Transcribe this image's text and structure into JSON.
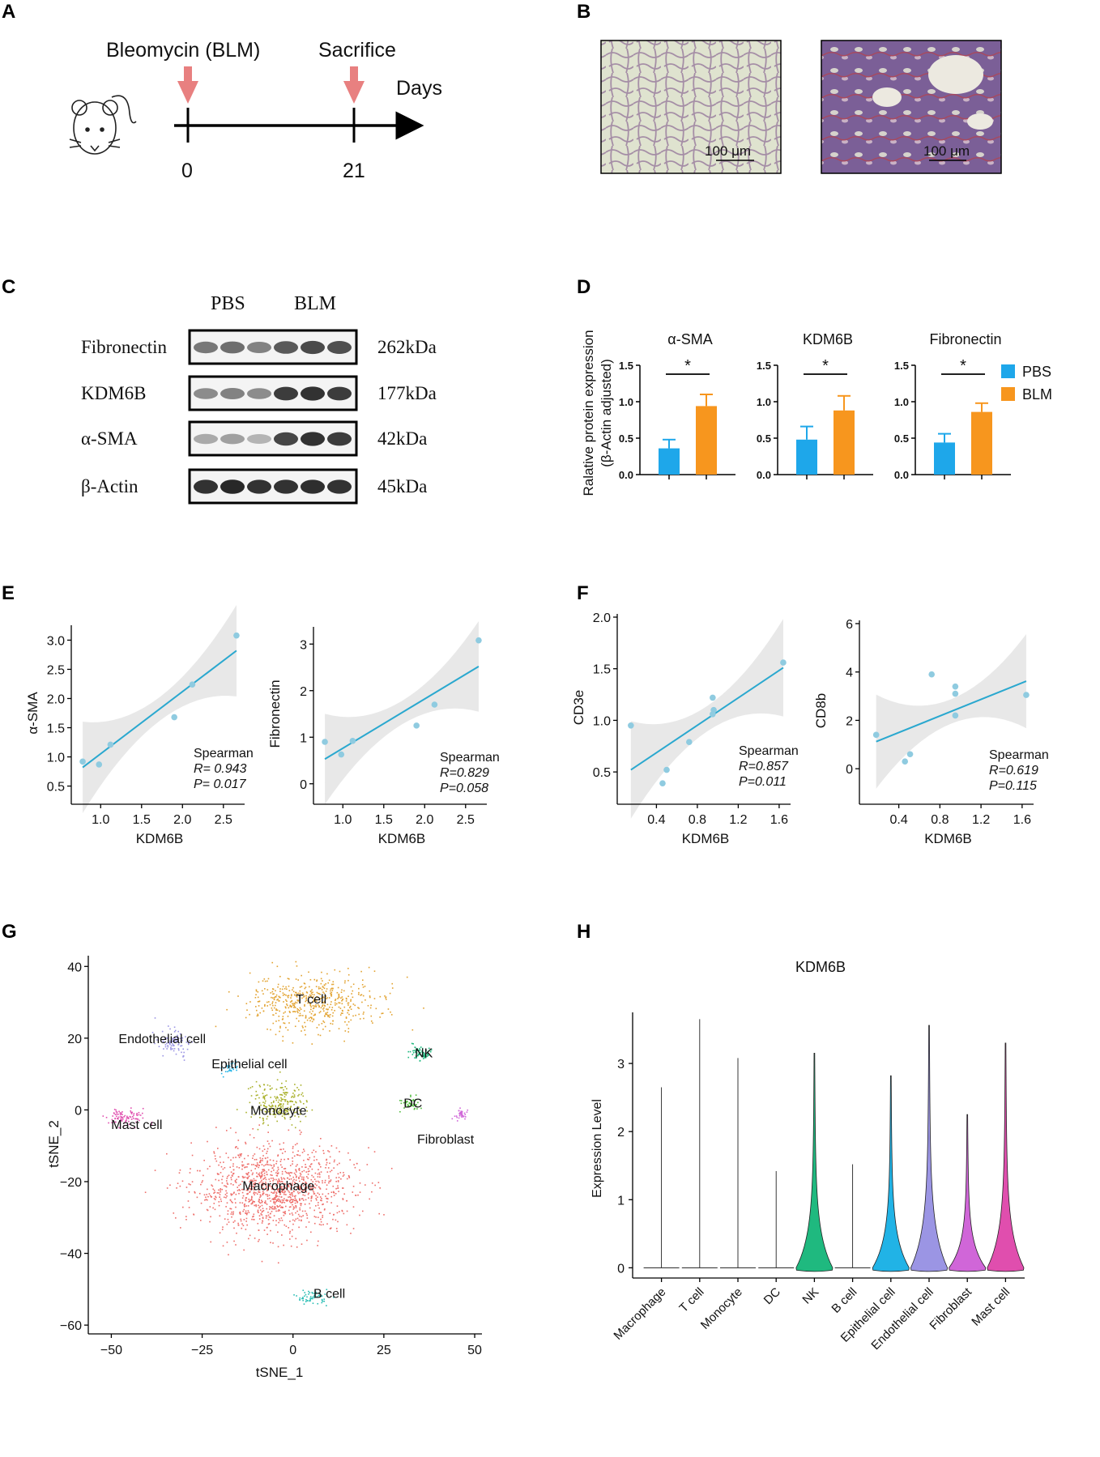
{
  "panel_labels": [
    "A",
    "B",
    "C",
    "D",
    "E",
    "F",
    "G",
    "H"
  ],
  "colors": {
    "arrow": "#e88080",
    "pbs": "#1ea7ea",
    "blm": "#f7961e",
    "scatter_point": "#8fcbe0",
    "fit_line": "#2aa8cf",
    "band": "#e6e6e6",
    "stain_normal_bg": "#dfe3cf",
    "stain_normal_tissue": "#a58ea6",
    "stain_fibrotic_bg": "#d6d3cc",
    "stain_fibrotic_tissue": "#7b5f97"
  },
  "panel_a": {
    "drug_label": "Bleomycin (BLM)",
    "end_label": "Sacrifice",
    "axis_label": "Days",
    "day_start": "0",
    "day_end": "21",
    "mouse_icon": "mouse-icon"
  },
  "panel_b": {
    "scale_left": "100 μm",
    "scale_right": "100 μm"
  },
  "panel_c": {
    "groups": [
      "PBS",
      "BLM"
    ],
    "rows": [
      {
        "protein": "Fibronectin",
        "kda": "262kDa",
        "intensity": [
          0.55,
          0.6,
          0.5,
          0.7,
          0.78,
          0.75
        ]
      },
      {
        "protein": "KDM6B",
        "kda": "177kDa",
        "intensity": [
          0.45,
          0.5,
          0.45,
          0.85,
          0.9,
          0.85
        ]
      },
      {
        "protein": "α-SMA",
        "kda": "42kDa",
        "intensity": [
          0.3,
          0.35,
          0.25,
          0.8,
          0.9,
          0.85
        ]
      },
      {
        "protein": "β-Actin",
        "kda": "45kDa",
        "intensity": [
          0.9,
          0.95,
          0.9,
          0.9,
          0.92,
          0.9
        ]
      }
    ]
  },
  "chart_data": [
    {
      "id": "D",
      "type": "bar",
      "ylabel_line1": "Ralative protein expression",
      "ylabel_line2": "(β-Actin adjusted)",
      "ylim": [
        0,
        1.5
      ],
      "yticks": [
        "0.0",
        "0.5",
        "1.0",
        "1.5"
      ],
      "series_names": [
        "PBS",
        "BLM"
      ],
      "significance": "*",
      "subplots": [
        {
          "title": "α-SMA",
          "values": [
            0.36,
            0.94
          ],
          "errors": [
            0.12,
            0.16
          ]
        },
        {
          "title": "KDM6B",
          "values": [
            0.48,
            0.88
          ],
          "errors": [
            0.18,
            0.2
          ]
        },
        {
          "title": "Fibronectin",
          "values": [
            0.44,
            0.86
          ],
          "errors": [
            0.12,
            0.12
          ]
        }
      ]
    },
    {
      "id": "E1",
      "type": "scatter",
      "xlabel": "KDM6B",
      "ylabel": "α-SMA",
      "xlim": [
        0.72,
        2.72
      ],
      "ylim": [
        0.3,
        3.2
      ],
      "xticks": [
        "1.0",
        "1.5",
        "2.0",
        "2.5"
      ],
      "xtick_values": [
        1.0,
        1.5,
        2.0,
        2.5
      ],
      "yticks": [
        "0.5",
        "1.0",
        "1.5",
        "2.0",
        "2.5",
        "3.0"
      ],
      "ytick_values": [
        0.5,
        1.0,
        1.5,
        2.0,
        2.5,
        3.0
      ],
      "points": [
        [
          0.78,
          0.92
        ],
        [
          0.98,
          0.87
        ],
        [
          1.12,
          1.21
        ],
        [
          1.9,
          1.68
        ],
        [
          2.12,
          2.24
        ],
        [
          2.66,
          3.08
        ]
      ],
      "fit": [
        [
          0.78,
          0.82
        ],
        [
          2.66,
          2.82
        ]
      ],
      "stat_title": "Spearman",
      "stat_r": "R= 0.943",
      "stat_p": "P= 0.017"
    },
    {
      "id": "E2",
      "type": "scatter",
      "xlabel": "KDM6B",
      "ylabel": "Fibronectin",
      "xlim": [
        0.72,
        2.72
      ],
      "ylim": [
        -0.3,
        3.3
      ],
      "xticks": [
        "1.0",
        "1.5",
        "2.0",
        "2.5"
      ],
      "xtick_values": [
        1.0,
        1.5,
        2.0,
        2.5
      ],
      "yticks": [
        "0",
        "1",
        "2",
        "3"
      ],
      "ytick_values": [
        0,
        1,
        2,
        3
      ],
      "points": [
        [
          0.78,
          0.9
        ],
        [
          0.98,
          0.63
        ],
        [
          1.12,
          0.92
        ],
        [
          1.9,
          1.25
        ],
        [
          2.12,
          1.7
        ],
        [
          2.66,
          3.08
        ]
      ],
      "fit": [
        [
          0.78,
          0.53
        ],
        [
          2.66,
          2.52
        ]
      ],
      "stat_title": "Spearman",
      "stat_r": "R=0.829",
      "stat_p": "P=0.058"
    },
    {
      "id": "F1",
      "type": "scatter",
      "xlabel": "KDM6B",
      "ylabel": "CD3e",
      "xlim": [
        0.08,
        1.68
      ],
      "ylim": [
        0.25,
        2.0
      ],
      "xticks": [
        "0.4",
        "0.8",
        "1.2",
        "1.6"
      ],
      "xtick_values": [
        0.4,
        0.8,
        1.2,
        1.6
      ],
      "yticks": [
        "0.5",
        "1.0",
        "1.5",
        "2.0"
      ],
      "ytick_values": [
        0.5,
        1.0,
        1.5,
        2.0
      ],
      "points": [
        [
          0.15,
          0.95
        ],
        [
          0.46,
          0.39
        ],
        [
          0.5,
          0.52
        ],
        [
          0.72,
          0.79
        ],
        [
          0.95,
          1.22
        ],
        [
          0.95,
          1.06
        ],
        [
          0.96,
          1.1
        ],
        [
          1.64,
          1.56
        ]
      ],
      "fit": [
        [
          0.15,
          0.52
        ],
        [
          1.64,
          1.51
        ]
      ],
      "stat_title": "Spearman",
      "stat_r": "R=0.857",
      "stat_p": "P=0.011"
    },
    {
      "id": "F2",
      "type": "scatter",
      "xlabel": "KDM6B",
      "ylabel": "CD8b",
      "xlim": [
        0.08,
        1.68
      ],
      "ylim": [
        -1.2,
        6.0
      ],
      "xticks": [
        "0.4",
        "0.8",
        "1.2",
        "1.6"
      ],
      "xtick_values": [
        0.4,
        0.8,
        1.2,
        1.6
      ],
      "yticks": [
        "0",
        "2",
        "4",
        "6"
      ],
      "ytick_values": [
        0,
        2,
        4,
        6
      ],
      "points": [
        [
          0.18,
          1.4
        ],
        [
          0.46,
          0.3
        ],
        [
          0.51,
          0.6
        ],
        [
          0.72,
          3.9
        ],
        [
          0.95,
          3.4
        ],
        [
          0.95,
          3.1
        ],
        [
          0.95,
          2.2
        ],
        [
          1.64,
          3.05
        ]
      ],
      "fit": [
        [
          0.18,
          1.12
        ],
        [
          1.64,
          3.62
        ]
      ],
      "stat_title": "Spearman",
      "stat_r": "R=0.619",
      "stat_p": "P=0.115"
    },
    {
      "id": "G",
      "type": "scatter",
      "xlabel": "tSNE_1",
      "ylabel": "tSNE_2",
      "xlim": [
        -55,
        52
      ],
      "ylim": [
        -62,
        43
      ],
      "xticks": [
        "−50",
        "−25",
        "0",
        "25",
        "50"
      ],
      "xtick_values": [
        -50,
        -25,
        0,
        25,
        50
      ],
      "yticks": [
        "40",
        "20",
        "0",
        "−20",
        "−40",
        "−60"
      ],
      "ytick_values": [
        40,
        20,
        0,
        -20,
        -40,
        -60
      ],
      "clusters": [
        {
          "label": "T cell",
          "color": "#e2a22f",
          "center": [
            5,
            30
          ],
          "spread": [
            16,
            7
          ],
          "n": 520,
          "label_at": [
            5,
            31
          ]
        },
        {
          "label": "Endothelial cell",
          "color": "#9b95e4",
          "center": [
            -33,
            19
          ],
          "spread": [
            4,
            3.5
          ],
          "n": 90,
          "label_at": [
            -36,
            20
          ]
        },
        {
          "label": "Epithelial cell",
          "color": "#21b3e6",
          "center": [
            -18,
            12
          ],
          "spread": [
            3,
            1.5
          ],
          "n": 30,
          "label_at": [
            -12,
            13
          ]
        },
        {
          "label": "NK",
          "color": "#1fb97f",
          "center": [
            35,
            16
          ],
          "spread": [
            2.5,
            2
          ],
          "n": 70,
          "label_at": [
            36,
            16
          ]
        },
        {
          "label": "Monocyte",
          "color": "#a9b02a",
          "center": [
            -4,
            2
          ],
          "spread": [
            7,
            5
          ],
          "n": 220,
          "label_at": [
            -4,
            0
          ]
        },
        {
          "label": "DC",
          "color": "#4dba3a",
          "center": [
            32,
            2
          ],
          "spread": [
            2.5,
            2
          ],
          "n": 40,
          "label_at": [
            33,
            2
          ]
        },
        {
          "label": "Fibroblast",
          "color": "#d066d8",
          "center": [
            46,
            -1
          ],
          "spread": [
            1.8,
            2
          ],
          "n": 35,
          "label_at": [
            42,
            -8
          ]
        },
        {
          "label": "Mast cell",
          "color": "#e04eae",
          "center": [
            -46,
            -2
          ],
          "spread": [
            5,
            2
          ],
          "n": 90,
          "label_at": [
            -43,
            -4
          ]
        },
        {
          "label": "Macrophage",
          "color": "#ee6e6a",
          "center": [
            -5,
            -22
          ],
          "spread": [
            20,
            11
          ],
          "n": 1200,
          "label_at": [
            -4,
            -21
          ]
        },
        {
          "label": "B cell",
          "color": "#29bdb4",
          "center": [
            5,
            -52
          ],
          "spread": [
            4,
            1.8
          ],
          "n": 60,
          "label_at": [
            10,
            -51
          ]
        }
      ]
    },
    {
      "id": "H",
      "type": "violin",
      "title": "KDM6B",
      "ylabel": "Expression Level",
      "ylim": [
        -0.15,
        3.75
      ],
      "yticks": [
        "0",
        "1",
        "2",
        "3"
      ],
      "ytick_values": [
        0,
        1,
        2,
        3
      ],
      "categories": [
        "Macrophage",
        "T cell",
        "Monocyte",
        "DC",
        "NK",
        "B cell",
        "Epithelial cell",
        "Endothelial cell",
        "Fibroblast",
        "Mast cell"
      ],
      "max_values": [
        2.65,
        3.65,
        3.08,
        1.42,
        3.15,
        1.52,
        2.82,
        3.56,
        2.25,
        3.3
      ],
      "fill_colors": [
        "#ee6e6a",
        "#e2a22f",
        "#a9b02a",
        "#4dba3a",
        "#1fb97f",
        "#29bdb4",
        "#21b3e6",
        "#9b95e4",
        "#d066d8",
        "#e04eae"
      ],
      "filled": [
        false,
        false,
        false,
        false,
        true,
        false,
        true,
        true,
        true,
        true
      ]
    }
  ]
}
